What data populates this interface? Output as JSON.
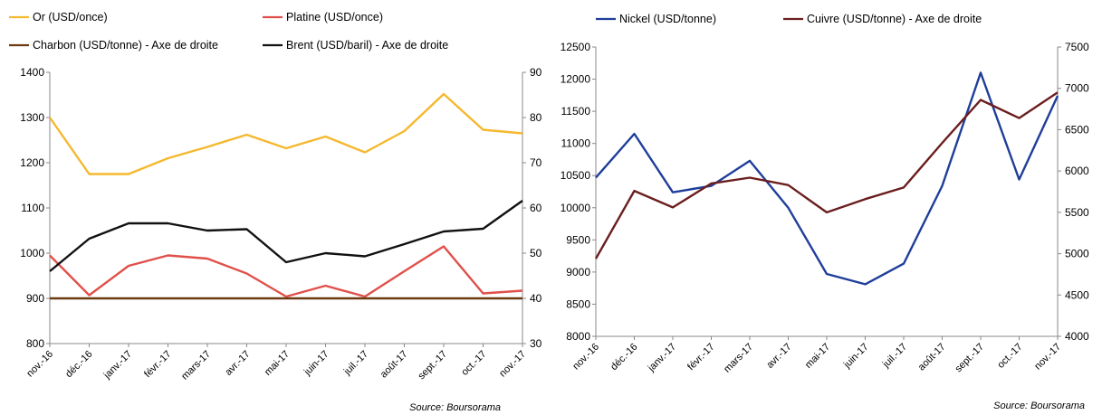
{
  "chart_data": [
    {
      "type": "line",
      "categories": [
        "nov.-16",
        "déc.-16",
        "janv.-17",
        "févr.-17",
        "mars-17",
        "avr.-17",
        "mai-17",
        "juin-17",
        "juil.-17",
        "août-17",
        "sept.-17",
        "oct.-17",
        "nov.-17"
      ],
      "y_left": {
        "range": [
          800,
          1400
        ],
        "ticks": [
          800,
          900,
          1000,
          1100,
          1200,
          1300,
          1400
        ]
      },
      "y_right": {
        "range": [
          30,
          90
        ],
        "ticks": [
          30,
          40,
          50,
          60,
          70,
          80,
          90
        ]
      },
      "legend_position": "top",
      "grid": false,
      "series": [
        {
          "name": "Or (USD/once)",
          "axis": "left",
          "color": "#F5B82E",
          "values": [
            1300,
            1175,
            1175,
            1210,
            1235,
            1262,
            1232,
            1258,
            1223,
            1270,
            1352,
            1273,
            1265
          ]
        },
        {
          "name": "Platine (USD/once)",
          "axis": "left",
          "color": "#E0504A",
          "values": [
            995,
            907,
            972,
            995,
            988,
            955,
            904,
            928,
            904,
            960,
            1015,
            911,
            917
          ]
        },
        {
          "name": "Charbon (USD/tonne) - Axe de droite",
          "axis": "right",
          "color": "#6B3A10",
          "values": [
            40,
            40,
            40,
            40,
            40,
            40,
            40,
            40,
            40,
            40,
            40,
            40,
            40
          ]
        },
        {
          "name": "Brent (USD/baril) - Axe de droite",
          "axis": "right",
          "color": "#111111",
          "values": [
            46,
            53.2,
            56.6,
            56.6,
            55,
            55.3,
            48,
            50,
            49.3,
            52,
            54.8,
            55.4,
            61.6
          ]
        }
      ],
      "source": "Source: Boursorama"
    },
    {
      "type": "line",
      "categories": [
        "nov.-16",
        "déc.-16",
        "janv.-17",
        "févr.-17",
        "mars-17",
        "avr.-17",
        "mai-17",
        "juin-17",
        "juil.-17",
        "août-17",
        "sept.-17",
        "oct.-17",
        "nov.-17"
      ],
      "y_left": {
        "range": [
          8000,
          12500
        ],
        "ticks": [
          8000,
          8500,
          9000,
          9500,
          10000,
          10500,
          11000,
          11500,
          12000,
          12500
        ]
      },
      "y_right": {
        "range": [
          4000,
          7500
        ],
        "ticks": [
          4000,
          4500,
          5000,
          5500,
          6000,
          6500,
          7000,
          7500
        ]
      },
      "legend_position": "top",
      "grid": false,
      "series": [
        {
          "name": "Nickel (USD/tonne)",
          "axis": "left",
          "color": "#1F3E9A",
          "values": [
            10470,
            11150,
            10240,
            10340,
            10730,
            10000,
            8970,
            8810,
            9130,
            10340,
            12100,
            10440,
            11740
          ]
        },
        {
          "name": "Cuivre (USD/tonne) - Axe de droite",
          "axis": "right",
          "color": "#6B1E1E",
          "values": [
            4940,
            5760,
            5560,
            5850,
            5920,
            5830,
            5500,
            5660,
            5800,
            6340,
            6860,
            6640,
            6950
          ]
        }
      ],
      "source": "Source: Boursorama"
    }
  ]
}
